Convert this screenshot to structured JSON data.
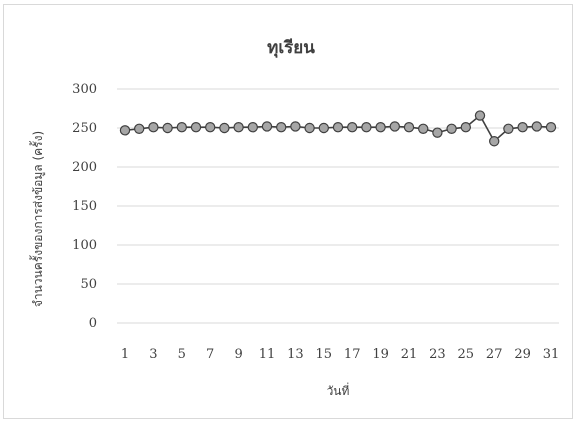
{
  "chart_data": {
    "type": "line",
    "title": "ทุเรียน",
    "xlabel": "วันที่",
    "ylabel": "จำนวนครั้งของการส่งข้อมูล (ครั้ง)",
    "ylim": [
      0,
      300
    ],
    "y_ticks": [
      "0",
      "50",
      "100",
      "150",
      "200",
      "250",
      "300"
    ],
    "x_ticks": [
      "1",
      "3",
      "5",
      "7",
      "9",
      "11",
      "13",
      "15",
      "17",
      "19",
      "21",
      "23",
      "25",
      "27",
      "29",
      "31"
    ],
    "grid": true,
    "legend": "none",
    "colors": {
      "line": "#404040",
      "marker_fill": "#a6a6a6",
      "marker_stroke": "#404040",
      "grid": "#d9d9d9"
    },
    "x": [
      1,
      2,
      3,
      4,
      5,
      6,
      7,
      8,
      9,
      10,
      11,
      12,
      13,
      14,
      15,
      16,
      17,
      18,
      19,
      20,
      21,
      22,
      23,
      24,
      25,
      26,
      27,
      28,
      29,
      30,
      31
    ],
    "series": [
      {
        "values": [
          247,
          249,
          251,
          250,
          251,
          251,
          251,
          250,
          251,
          251,
          252,
          251,
          252,
          250,
          250,
          251,
          251,
          251,
          251,
          252,
          251,
          249,
          244,
          249,
          251,
          266,
          233,
          249,
          251,
          252,
          251
        ]
      }
    ]
  }
}
